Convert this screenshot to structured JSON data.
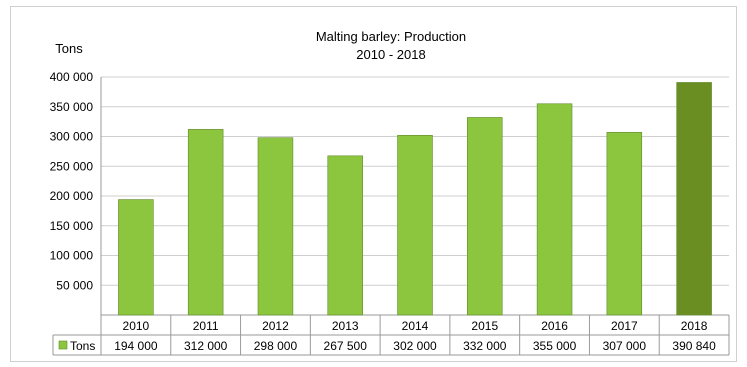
{
  "chart_data": {
    "type": "bar",
    "title": "Malting barley: Production",
    "subtitle": "2010 - 2018",
    "ylabel": "Tons",
    "xlabel": "",
    "categories": [
      "2010",
      "2011",
      "2012",
      "2013",
      "2014",
      "2015",
      "2016",
      "2017",
      "2018"
    ],
    "series": [
      {
        "name": "Tons",
        "values": [
          194000,
          312000,
          298000,
          267500,
          302000,
          332000,
          355000,
          307000,
          390840
        ]
      }
    ],
    "table_values": [
      "194 000",
      "312 000",
      "298 000",
      "267 500",
      "302 000",
      "332 000",
      "355 000",
      "307 000",
      "390 840"
    ],
    "y_ticks": [
      "400 000",
      "350 000",
      "300 000",
      "250 000",
      "200 000",
      "150 000",
      "100 000",
      "50 000"
    ],
    "y_tick_values": [
      400000,
      350000,
      300000,
      250000,
      200000,
      150000,
      100000,
      50000
    ],
    "ylim": [
      0,
      400000
    ],
    "grid": true,
    "legend": "data-table",
    "colors": {
      "bar": "#8cc63f",
      "bar_highlight": "#6b8e23",
      "grid": "#cfcfcf"
    },
    "highlight_index": 8
  }
}
